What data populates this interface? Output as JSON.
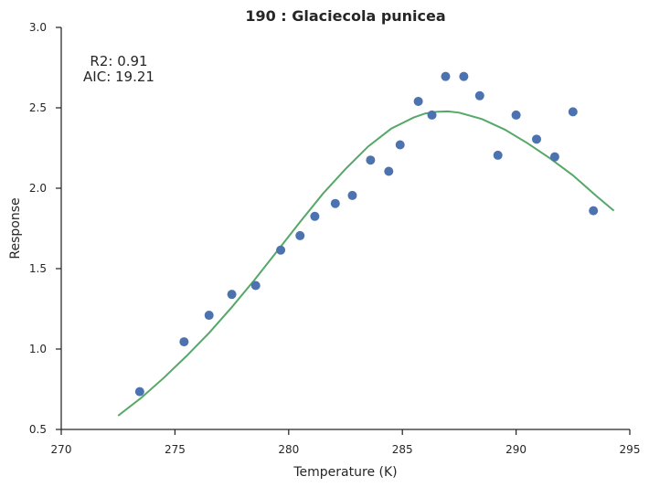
{
  "chart_data": {
    "type": "scatter",
    "title": "190 : Glaciecola punicea",
    "xlabel": "Temperature (K)",
    "ylabel": "Response",
    "xlim": [
      270,
      295
    ],
    "ylim": [
      0.5,
      3.0
    ],
    "xticks": [
      "270",
      "275",
      "280",
      "285",
      "290",
      "295"
    ],
    "yticks": [
      "0.5",
      "1.0",
      "1.5",
      "2.0",
      "2.5",
      "3.0"
    ],
    "grid": false,
    "annotations": {
      "r2": "R2: 0.91",
      "aic": "AIC: 19.21"
    },
    "colors": {
      "points": "#4c72b0",
      "fit": "#55a868"
    },
    "series": [
      {
        "kind": "scatter",
        "x": [
          273.45,
          275.4,
          276.5,
          277.5,
          278.55,
          279.65,
          280.5,
          281.15,
          282.05,
          282.8,
          283.6,
          284.4,
          284.9,
          285.7,
          286.3,
          286.9,
          287.7,
          288.4,
          289.2,
          290.0,
          290.9,
          291.7,
          292.5,
          293.4
        ],
        "y": [
          0.735,
          1.045,
          1.21,
          1.34,
          1.395,
          1.615,
          1.705,
          1.825,
          1.905,
          1.955,
          2.175,
          2.105,
          2.27,
          2.54,
          2.455,
          2.695,
          2.695,
          2.575,
          2.205,
          2.455,
          2.305,
          2.195,
          2.475,
          1.86
        ]
      },
      {
        "kind": "line",
        "x": [
          272.5,
          273.5,
          274.5,
          275.5,
          276.5,
          277.5,
          278.5,
          279.5,
          280.5,
          281.5,
          282.5,
          283.5,
          284.5,
          285.5,
          286.0,
          286.5,
          287.0,
          287.5,
          288.5,
          289.5,
          290.5,
          291.5,
          292.5,
          293.5,
          294.3
        ],
        "y": [
          0.585,
          0.695,
          0.82,
          0.955,
          1.1,
          1.26,
          1.43,
          1.61,
          1.79,
          1.965,
          2.12,
          2.26,
          2.37,
          2.44,
          2.465,
          2.475,
          2.478,
          2.47,
          2.43,
          2.365,
          2.28,
          2.185,
          2.08,
          1.955,
          1.86
        ]
      }
    ]
  }
}
